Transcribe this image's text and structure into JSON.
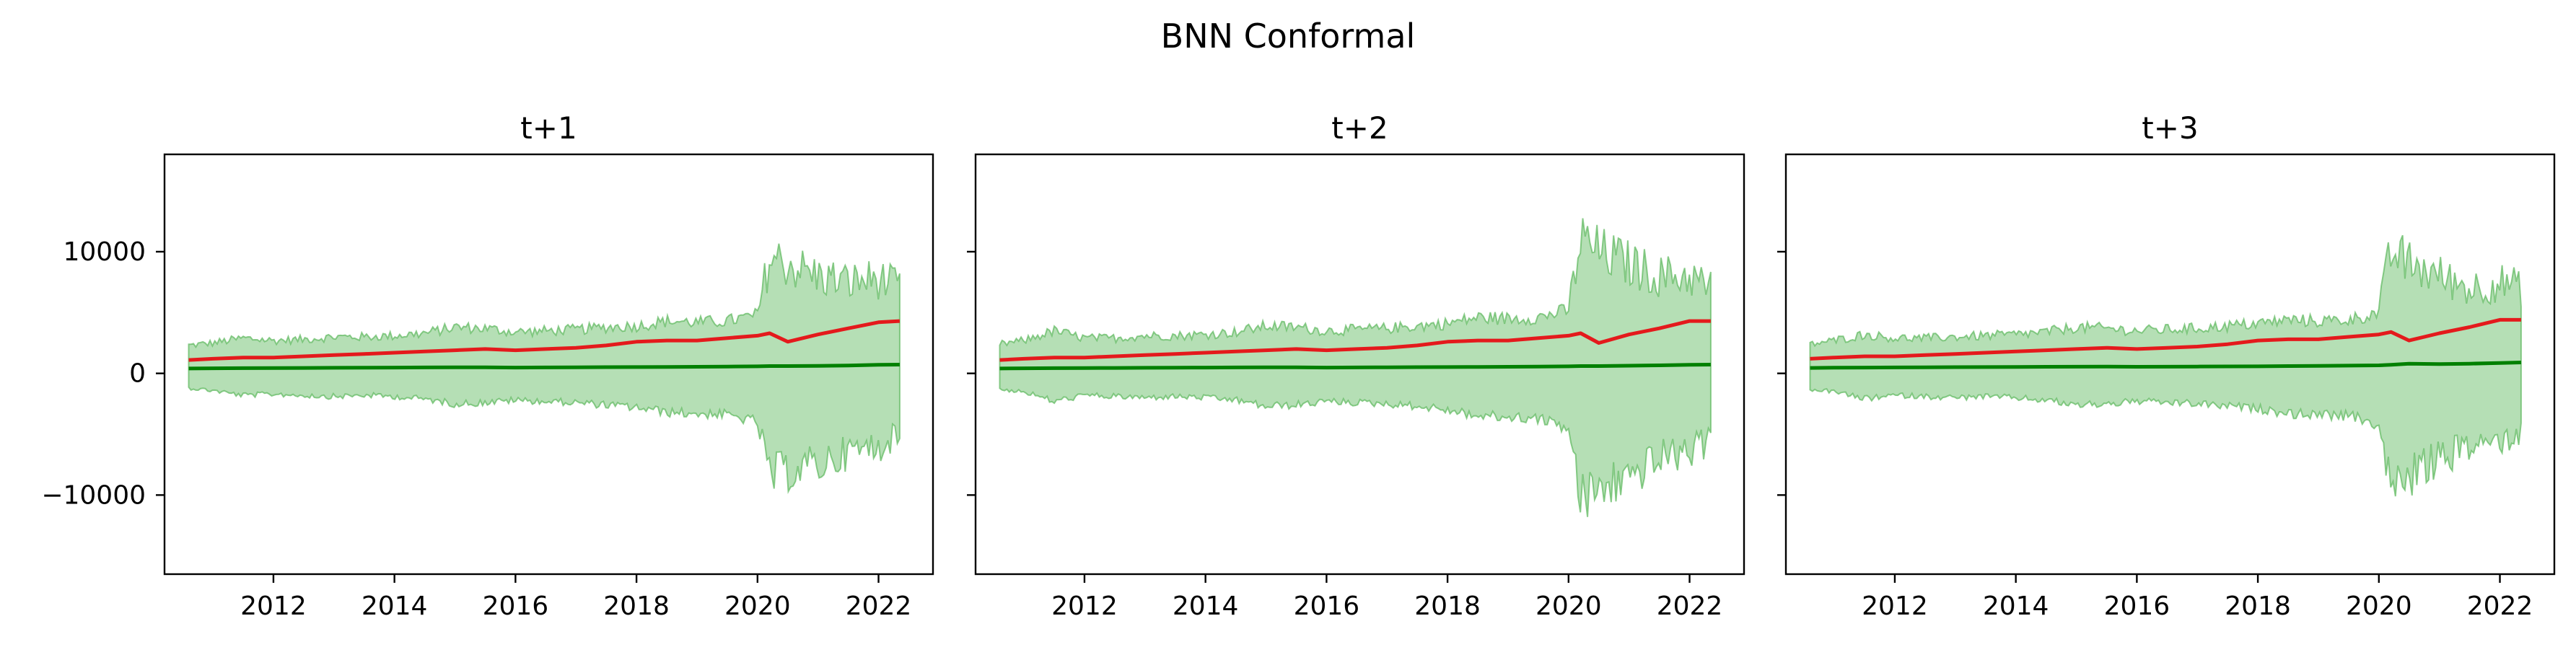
{
  "figure": {
    "title": "BNN Conformal"
  },
  "colors": {
    "upper_line": "#e41a1c",
    "lower_line": "#008000",
    "band_fill": "#5cb85c",
    "axes": "#000000"
  },
  "chart_data": [
    {
      "type": "area",
      "title": "t+1",
      "xlabel": "",
      "ylabel": "",
      "xlim": [
        2010.2,
        2022.9
      ],
      "ylim": [
        -16500,
        18000
      ],
      "x_ticks": [
        2012,
        2014,
        2016,
        2018,
        2020,
        2022
      ],
      "x_tick_labels": [
        "2012",
        "2014",
        "2016",
        "2018",
        "2020",
        "2022"
      ],
      "y_ticks": [
        10000,
        0,
        -10000
      ],
      "y_tick_labels": [
        "10000",
        "0",
        "−10000"
      ],
      "grid": false,
      "x": [
        2010.6,
        2011.0,
        2011.5,
        2012.0,
        2012.5,
        2013.0,
        2013.5,
        2014.0,
        2014.5,
        2015.0,
        2015.5,
        2016.0,
        2016.5,
        2017.0,
        2017.5,
        2018.0,
        2018.5,
        2019.0,
        2019.5,
        2020.0,
        2020.2,
        2020.5,
        2021.0,
        2021.5,
        2022.0,
        2022.35
      ],
      "series": [
        {
          "values": [
            1100,
            1200,
            1300,
            1300,
            1400,
            1500,
            1600,
            1700,
            1800,
            1900,
            2000,
            1900,
            2000,
            2100,
            2300,
            2600,
            2700,
            2700,
            2900,
            3100,
            3300,
            2600,
            3200,
            3700,
            4200,
            4300
          ]
        },
        {
          "values": [
            400,
            420,
            430,
            440,
            450,
            460,
            470,
            480,
            490,
            500,
            500,
            480,
            490,
            500,
            510,
            520,
            530,
            540,
            560,
            580,
            600,
            600,
            620,
            650,
            700,
            720
          ]
        },
        {
          "values": [
            2300,
            2500,
            2900,
            2700,
            2800,
            3000,
            3000,
            3100,
            3300,
            3800,
            3700,
            3400,
            3500,
            3600,
            3800,
            3900,
            4300,
            4200,
            4300,
            4800,
            9500,
            9000,
            8000,
            7500,
            7800,
            7000
          ]
        },
        {
          "values": [
            -1200,
            -1400,
            -1800,
            -1700,
            -1800,
            -1900,
            -1800,
            -1900,
            -2100,
            -2500,
            -2400,
            -2200,
            -2300,
            -2400,
            -2600,
            -2800,
            -3200,
            -3300,
            -3400,
            -4000,
            -8500,
            -8000,
            -7500,
            -6500,
            -6000,
            -5000
          ]
        }
      ]
    },
    {
      "type": "area",
      "title": "t+2",
      "xlabel": "",
      "ylabel": "",
      "xlim": [
        2010.2,
        2022.9
      ],
      "ylim": [
        -16500,
        18000
      ],
      "x_ticks": [
        2012,
        2014,
        2016,
        2018,
        2020,
        2022
      ],
      "x_tick_labels": [
        "2012",
        "2014",
        "2016",
        "2018",
        "2020",
        "2022"
      ],
      "y_ticks": [
        10000,
        0,
        -10000
      ],
      "y_tick_labels": [
        "",
        "",
        ""
      ],
      "grid": false,
      "x": [
        2010.6,
        2011.0,
        2011.5,
        2012.0,
        2012.5,
        2013.0,
        2013.5,
        2014.0,
        2014.5,
        2015.0,
        2015.5,
        2016.0,
        2016.5,
        2017.0,
        2017.5,
        2018.0,
        2018.5,
        2019.0,
        2019.5,
        2020.0,
        2020.2,
        2020.5,
        2021.0,
        2021.5,
        2022.0,
        2022.35
      ],
      "series": [
        {
          "values": [
            1100,
            1200,
            1300,
            1300,
            1400,
            1500,
            1600,
            1700,
            1800,
            1900,
            2000,
            1900,
            2000,
            2100,
            2300,
            2600,
            2700,
            2700,
            2900,
            3100,
            3300,
            2500,
            3200,
            3700,
            4300,
            4300
          ]
        },
        {
          "values": [
            400,
            420,
            430,
            440,
            450,
            460,
            470,
            480,
            490,
            500,
            500,
            480,
            490,
            500,
            510,
            520,
            530,
            540,
            560,
            580,
            600,
            600,
            630,
            660,
            700,
            720
          ]
        },
        {
          "values": [
            2400,
            2700,
            3500,
            2900,
            2900,
            3100,
            3100,
            3200,
            3400,
            3900,
            3800,
            3500,
            3600,
            3700,
            3900,
            4100,
            4600,
            4500,
            4600,
            5200,
            11000,
            10000,
            9000,
            8000,
            8000,
            7000
          ]
        },
        {
          "values": [
            -1300,
            -1500,
            -2300,
            -1800,
            -1900,
            -2000,
            -1900,
            -2000,
            -2200,
            -2700,
            -2600,
            -2300,
            -2400,
            -2500,
            -2700,
            -3000,
            -3500,
            -3600,
            -3700,
            -4500,
            -10500,
            -9500,
            -8500,
            -7000,
            -6500,
            -5500
          ]
        }
      ]
    },
    {
      "type": "area",
      "title": "t+3",
      "xlabel": "",
      "ylabel": "",
      "xlim": [
        2010.2,
        2022.9
      ],
      "ylim": [
        -16500,
        18000
      ],
      "x_ticks": [
        2012,
        2014,
        2016,
        2018,
        2020,
        2022
      ],
      "x_tick_labels": [
        "2012",
        "2014",
        "2016",
        "2018",
        "2020",
        "2022"
      ],
      "y_ticks": [
        10000,
        0,
        -10000
      ],
      "y_tick_labels": [
        "",
        "",
        ""
      ],
      "grid": false,
      "x": [
        2010.6,
        2011.0,
        2011.5,
        2012.0,
        2012.5,
        2013.0,
        2013.5,
        2014.0,
        2014.5,
        2015.0,
        2015.5,
        2016.0,
        2016.5,
        2017.0,
        2017.5,
        2018.0,
        2018.5,
        2019.0,
        2019.5,
        2020.0,
        2020.2,
        2020.5,
        2021.0,
        2021.5,
        2022.0,
        2022.35
      ],
      "series": [
        {
          "values": [
            1200,
            1300,
            1400,
            1400,
            1500,
            1600,
            1700,
            1800,
            1900,
            2000,
            2100,
            2000,
            2100,
            2200,
            2400,
            2700,
            2800,
            2800,
            3000,
            3200,
            3400,
            2700,
            3300,
            3800,
            4400,
            4400
          ]
        },
        {
          "values": [
            450,
            470,
            480,
            490,
            500,
            510,
            520,
            530,
            540,
            550,
            560,
            540,
            550,
            560,
            570,
            580,
            600,
            620,
            640,
            660,
            700,
            800,
            760,
            800,
            850,
            900
          ]
        },
        {
          "values": [
            2400,
            2700,
            3200,
            2900,
            2900,
            3000,
            3100,
            3200,
            3400,
            3800,
            3700,
            3500,
            3600,
            3700,
            3900,
            4100,
            4400,
            4300,
            4400,
            5000,
            10000,
            9000,
            8000,
            7000,
            7500,
            7000
          ]
        },
        {
          "values": [
            -1300,
            -1500,
            -2100,
            -1800,
            -1900,
            -2000,
            -1900,
            -2000,
            -2200,
            -2600,
            -2500,
            -2300,
            -2400,
            -2500,
            -2700,
            -2900,
            -3300,
            -3400,
            -3500,
            -4200,
            -9500,
            -8500,
            -7000,
            -6000,
            -5500,
            -5000
          ]
        }
      ]
    }
  ]
}
